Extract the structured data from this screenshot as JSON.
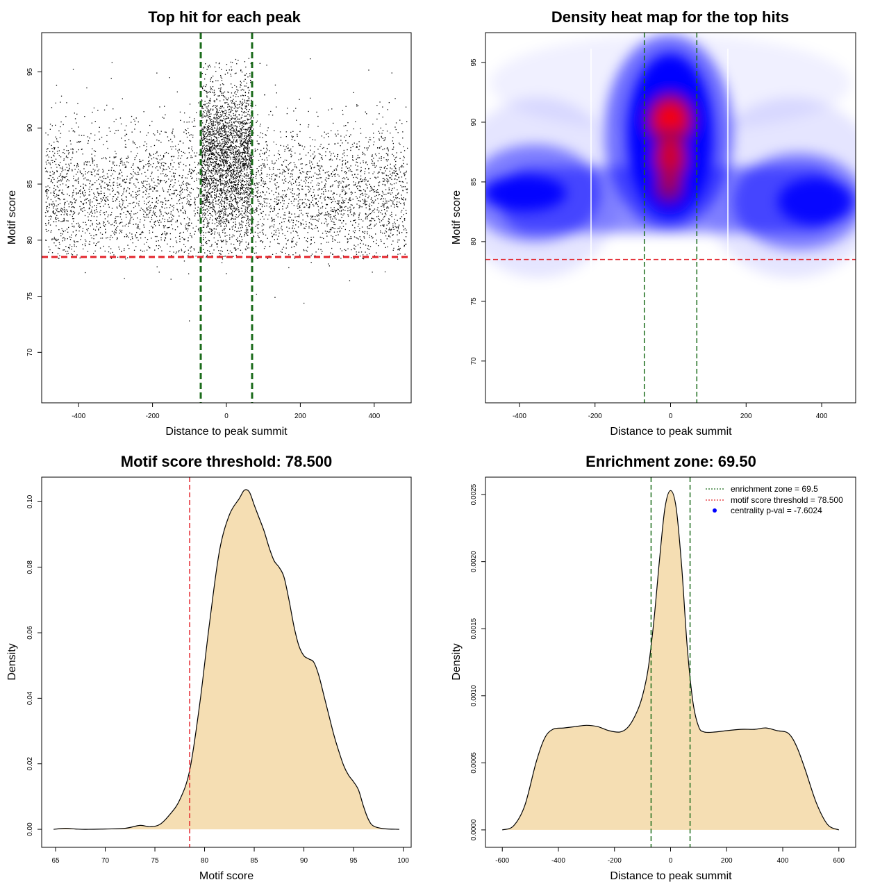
{
  "colors": {
    "threshold_line": "#e3242b",
    "zone_line": "#1a6b1a",
    "density_fill": "#f5deb3",
    "point": "#000000",
    "heat_low": "#0000ff",
    "heat_high": "#ff0000",
    "legend_dot": "#0000ff"
  },
  "chart_data": [
    {
      "id": "scatter",
      "type": "scatter",
      "title": "Top hit for each peak",
      "xlabel": "Distance to peak summit",
      "ylabel": "Motif score",
      "xlim": [
        -500,
        500
      ],
      "ylim": [
        65.5,
        98.5
      ],
      "xticks": [
        -400,
        -200,
        0,
        200,
        400
      ],
      "yticks": [
        70,
        75,
        80,
        85,
        90,
        95
      ],
      "xtick_labels": [
        "-400",
        "-200",
        "0",
        "200",
        "400"
      ],
      "ytick_labels": [
        "70",
        "75",
        "80",
        "85",
        "90",
        "95"
      ],
      "threshold": 78.5,
      "enrichment_zone": [
        -69.5,
        69.5
      ],
      "background": {
        "x_range": [
          -490,
          490
        ],
        "score_mean": 84.0,
        "score_sd": 3.3,
        "n": 4500
      },
      "central_cluster": {
        "x_range": [
          -69.5,
          69.5
        ],
        "score_mean": 87.8,
        "score_sd": 3.2,
        "n": 2300
      }
    },
    {
      "id": "heatmap",
      "type": "heatmap",
      "title": "Density heat map for the top hits",
      "xlabel": "Distance to peak summit",
      "ylabel": "Motif score",
      "xlim": [
        -490,
        490
      ],
      "ylim": [
        66.5,
        97.5
      ],
      "xticks": [
        -400,
        -200,
        0,
        200,
        400
      ],
      "yticks": [
        70,
        75,
        80,
        85,
        90,
        95
      ],
      "xtick_labels": [
        "-400",
        "-200",
        "0",
        "200",
        "400"
      ],
      "ytick_labels": [
        "70",
        "75",
        "80",
        "85",
        "90",
        "95"
      ],
      "threshold": 78.5,
      "enrichment_zone": [
        -69.5,
        69.5
      ],
      "density_peak": {
        "x": 0,
        "y": 90.5
      }
    },
    {
      "id": "score_density",
      "type": "area",
      "title": "Motif score threshold: 78.500",
      "xlabel": "Motif score",
      "ylabel": "Density",
      "xlim": [
        63.6,
        100.8
      ],
      "ylim": [
        -0.0055,
        0.1075
      ],
      "xticks": [
        65,
        70,
        75,
        80,
        85,
        90,
        95,
        100
      ],
      "yticks": [
        0.0,
        0.02,
        0.04,
        0.06,
        0.08,
        0.1
      ],
      "xtick_labels": [
        "65",
        "70",
        "75",
        "80",
        "85",
        "90",
        "95",
        "100"
      ],
      "ytick_labels": [
        "0.00",
        "0.02",
        "0.04",
        "0.06",
        "0.08",
        "0.10"
      ],
      "threshold": 78.5,
      "x": [
        64.8,
        66,
        67,
        68,
        70,
        72,
        73.5,
        74.5,
        75.5,
        76.5,
        77.5,
        78.5,
        79.5,
        80.5,
        81.5,
        82.5,
        83.5,
        84,
        84.5,
        85,
        85.5,
        86,
        86.5,
        87,
        87.5,
        88,
        88.5,
        89,
        89.5,
        90,
        90.5,
        91,
        91.5,
        92,
        92.5,
        93,
        93.5,
        94,
        94.5,
        95,
        95.5,
        96,
        96.5,
        97,
        98,
        99.6
      ],
      "y": [
        0.0,
        0.0003,
        0.0001,
        0.0,
        0.0001,
        0.0003,
        0.0012,
        0.0008,
        0.0015,
        0.0045,
        0.009,
        0.018,
        0.038,
        0.063,
        0.085,
        0.096,
        0.101,
        0.1035,
        0.103,
        0.099,
        0.095,
        0.091,
        0.086,
        0.082,
        0.08,
        0.077,
        0.07,
        0.062,
        0.056,
        0.053,
        0.052,
        0.051,
        0.047,
        0.041,
        0.035,
        0.029,
        0.024,
        0.0195,
        0.0165,
        0.0145,
        0.012,
        0.007,
        0.003,
        0.001,
        0.0002,
        0.0
      ]
    },
    {
      "id": "distance_density",
      "type": "area",
      "title": "Enrichment zone: 69.50",
      "xlabel": "Distance to peak summit",
      "ylabel": "Density",
      "xlim": [
        -660,
        660
      ],
      "ylim": [
        -0.00013,
        0.00263
      ],
      "xticks": [
        -600,
        -400,
        -200,
        0,
        200,
        400,
        600
      ],
      "yticks": [
        0.0,
        0.0005,
        0.001,
        0.0015,
        0.002,
        0.0025
      ],
      "xtick_labels": [
        "-600",
        "-400",
        "-200",
        "0",
        "200",
        "400",
        "600"
      ],
      "ytick_labels": [
        "0.0000",
        "0.0005",
        "0.0010",
        "0.0015",
        "0.0020",
        "0.0025"
      ],
      "enrichment_zone": [
        -69.5,
        69.5
      ],
      "x": [
        -600,
        -560,
        -520,
        -480,
        -450,
        -420,
        -380,
        -340,
        -300,
        -260,
        -220,
        -180,
        -150,
        -120,
        -100,
        -80,
        -60,
        -40,
        -20,
        0,
        20,
        40,
        60,
        80,
        100,
        120,
        160,
        200,
        250,
        300,
        340,
        380,
        420,
        450,
        480,
        520,
        560,
        600
      ],
      "y": [
        0.0,
        3e-05,
        0.00018,
        0.0005,
        0.00068,
        0.00075,
        0.00076,
        0.00077,
        0.00078,
        0.00077,
        0.00074,
        0.00073,
        0.00077,
        0.00088,
        0.001,
        0.0012,
        0.00155,
        0.002,
        0.0024,
        0.00253,
        0.0024,
        0.00195,
        0.00135,
        0.00095,
        0.00077,
        0.00073,
        0.00073,
        0.00074,
        0.00075,
        0.00075,
        0.00076,
        0.00074,
        0.00072,
        0.00062,
        0.00045,
        0.0002,
        4e-05,
        0.0
      ],
      "legend": {
        "position": "top-right",
        "entries": [
          {
            "label": "enrichment zone = 69.5",
            "kind": "line",
            "color_key": "zone_line"
          },
          {
            "label": "motif score threshold = 78.500",
            "kind": "line",
            "color_key": "threshold_line"
          },
          {
            "label": "centrality p-val = -7.6024",
            "kind": "dot",
            "color_key": "legend_dot"
          }
        ]
      }
    }
  ]
}
